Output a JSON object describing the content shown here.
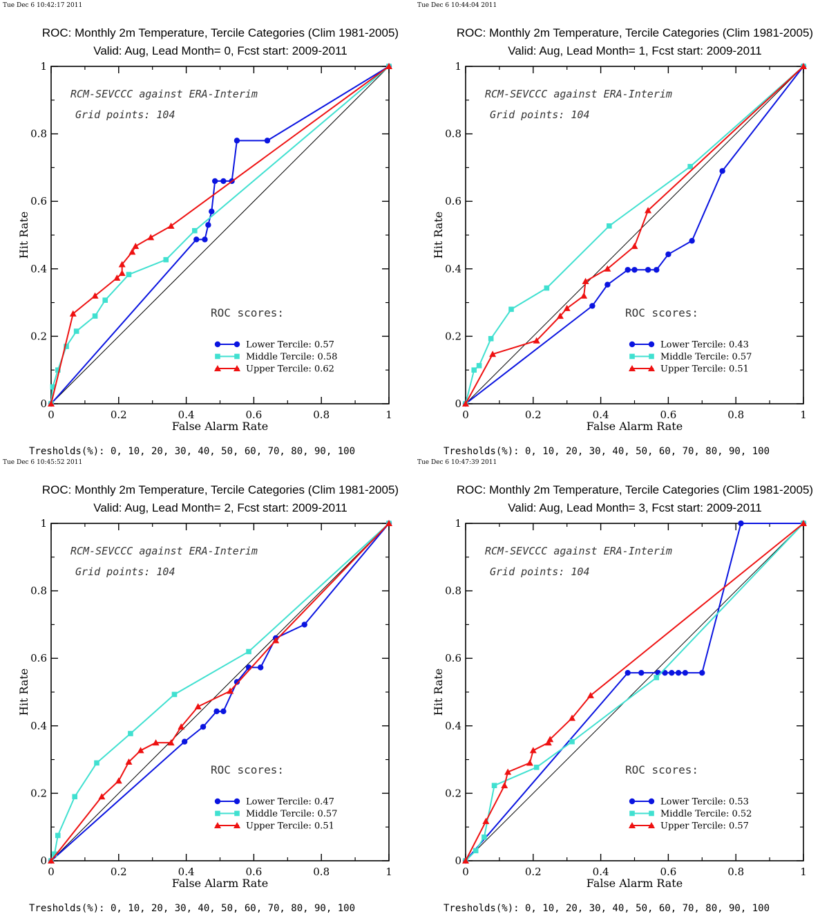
{
  "timestamps": [
    "Tue Dec  6 10:42:17 2011",
    "Tue Dec  6 10:44:04 2011",
    "Tue Dec  6 10:45:52 2011",
    "Tue Dec  6 10:47:39 2011"
  ],
  "colors": {
    "lower": "#0a14e0",
    "middle": "#40e0d0",
    "upper": "#ee1111",
    "diagonal": "#000000"
  },
  "chart_data": [
    {
      "type": "line",
      "title": "ROC: Monthly 2m Temperature, Tercile Categories (Clim 1981-2005)",
      "subtitle": "Valid: Aug, Lead Month= 0, Fcst start: 2009-2011",
      "xlabel": "False Alarm Rate",
      "ylabel": "Hit Rate",
      "xlim": [
        0,
        1
      ],
      "ylim": [
        0,
        1
      ],
      "xticks": [
        "0",
        "0.2",
        "0.4",
        "0.6",
        "0.8",
        "1"
      ],
      "yticks": [
        "0",
        "0.2",
        "0.4",
        "0.6",
        "0.8",
        "1"
      ],
      "annotation_1": "RCM-SEVCCC against ERA-Interim",
      "annotation_2": "Grid points:  104",
      "scores_heading": "ROC scores:",
      "thresholds": "Tresholds(%): 0, 10, 20, 30, 40, 50, 60, 70, 80, 90, 100",
      "series": [
        {
          "name": "Lower Tercile: 0.57",
          "marker": "circle",
          "x": [
            0,
            0.43,
            0.455,
            0.465,
            0.475,
            0.485,
            0.51,
            0.535,
            0.55,
            0.64,
            1
          ],
          "y": [
            0,
            0.487,
            0.487,
            0.53,
            0.57,
            0.66,
            0.66,
            0.66,
            0.78,
            0.78,
            1
          ]
        },
        {
          "name": "Middle Tercile: 0.58",
          "marker": "square",
          "x": [
            0,
            0.005,
            0.02,
            0.045,
            0.075,
            0.13,
            0.16,
            0.23,
            0.34,
            0.425,
            1
          ],
          "y": [
            0,
            0.05,
            0.1,
            0.17,
            0.215,
            0.26,
            0.307,
            0.383,
            0.427,
            0.513,
            1
          ]
        },
        {
          "name": "Upper Tercile: 0.62",
          "marker": "triangle",
          "x": [
            0,
            0.065,
            0.13,
            0.195,
            0.21,
            0.21,
            0.24,
            0.25,
            0.295,
            0.355,
            1
          ],
          "y": [
            0,
            0.267,
            0.32,
            0.373,
            0.387,
            0.413,
            0.45,
            0.467,
            0.493,
            0.527,
            1
          ]
        }
      ]
    },
    {
      "type": "line",
      "title": "ROC: Monthly 2m Temperature, Tercile Categories (Clim 1981-2005)",
      "subtitle": "Valid: Aug, Lead Month= 1, Fcst start: 2009-2011",
      "xlabel": "False Alarm Rate",
      "ylabel": "Hit Rate",
      "xlim": [
        0,
        1
      ],
      "ylim": [
        0,
        1
      ],
      "xticks": [
        "0",
        "0.2",
        "0.4",
        "0.6",
        "0.8",
        "1"
      ],
      "yticks": [
        "0",
        "0.2",
        "0.4",
        "0.6",
        "0.8",
        "1"
      ],
      "annotation_1": "RCM-SEVCCC against ERA-Interim",
      "annotation_2": "Grid points:  104",
      "scores_heading": "ROC scores:",
      "thresholds": "Tresholds(%): 0, 10, 20, 30, 40, 50, 60, 70, 80, 90, 100",
      "series": [
        {
          "name": "Lower Tercile: 0.43",
          "marker": "circle",
          "x": [
            0,
            0.375,
            0.42,
            0.48,
            0.5,
            0.54,
            0.565,
            0.6,
            0.67,
            0.76,
            1
          ],
          "y": [
            0,
            0.29,
            0.353,
            0.397,
            0.397,
            0.397,
            0.397,
            0.443,
            0.483,
            0.69,
            1
          ]
        },
        {
          "name": "Middle Tercile: 0.57",
          "marker": "square",
          "x": [
            0,
            0.025,
            0.04,
            0.075,
            0.135,
            0.24,
            0.425,
            0.665,
            1
          ],
          "y": [
            0,
            0.1,
            0.113,
            0.193,
            0.28,
            0.343,
            0.527,
            0.703,
            1
          ]
        },
        {
          "name": "Upper Tercile: 0.51",
          "marker": "triangle",
          "x": [
            0,
            0.08,
            0.21,
            0.28,
            0.3,
            0.35,
            0.355,
            0.42,
            0.5,
            0.54,
            1
          ],
          "y": [
            0,
            0.147,
            0.187,
            0.26,
            0.283,
            0.32,
            0.363,
            0.4,
            0.467,
            0.573,
            1
          ]
        }
      ]
    },
    {
      "type": "line",
      "title": "ROC: Monthly 2m Temperature, Tercile Categories (Clim 1981-2005)",
      "subtitle": "Valid: Aug, Lead Month= 2, Fcst start: 2009-2011",
      "xlabel": "False Alarm Rate",
      "ylabel": "Hit Rate",
      "xlim": [
        0,
        1
      ],
      "ylim": [
        0,
        1
      ],
      "xticks": [
        "0",
        "0.2",
        "0.4",
        "0.6",
        "0.8",
        "1"
      ],
      "yticks": [
        "0",
        "0.2",
        "0.4",
        "0.6",
        "0.8",
        "1"
      ],
      "annotation_1": "RCM-SEVCCC against ERA-Interim",
      "annotation_2": "Grid points:  104",
      "scores_heading": "ROC scores:",
      "thresholds": "Tresholds(%): 0, 10, 20, 30, 40, 50, 60, 70, 80, 90, 100",
      "series": [
        {
          "name": "Lower Tercile: 0.47",
          "marker": "circle",
          "x": [
            0,
            0.395,
            0.45,
            0.49,
            0.51,
            0.55,
            0.585,
            0.62,
            0.665,
            0.75,
            1
          ],
          "y": [
            0,
            0.353,
            0.397,
            0.443,
            0.443,
            0.53,
            0.573,
            0.573,
            0.66,
            0.7,
            1
          ]
        },
        {
          "name": "Middle Tercile: 0.57",
          "marker": "square",
          "x": [
            0,
            0.01,
            0.02,
            0.07,
            0.135,
            0.235,
            0.365,
            0.585,
            1
          ],
          "y": [
            0,
            0.02,
            0.075,
            0.19,
            0.29,
            0.377,
            0.493,
            0.62,
            1
          ]
        },
        {
          "name": "Upper Tercile: 0.51",
          "marker": "triangle",
          "x": [
            0,
            0.15,
            0.2,
            0.23,
            0.265,
            0.31,
            0.355,
            0.385,
            0.435,
            0.53,
            0.665,
            1
          ],
          "y": [
            0,
            0.19,
            0.237,
            0.293,
            0.327,
            0.35,
            0.35,
            0.397,
            0.457,
            0.503,
            0.653,
            1
          ]
        }
      ]
    },
    {
      "type": "line",
      "title": "ROC: Monthly 2m Temperature, Tercile Categories (Clim 1981-2005)",
      "subtitle": "Valid: Aug, Lead Month= 3, Fcst start: 2009-2011",
      "xlabel": "False Alarm Rate",
      "ylabel": "Hit Rate",
      "xlim": [
        0,
        1
      ],
      "ylim": [
        0,
        1
      ],
      "xticks": [
        "0",
        "0.2",
        "0.4",
        "0.6",
        "0.8",
        "1"
      ],
      "yticks": [
        "0",
        "0.2",
        "0.4",
        "0.6",
        "0.8",
        "1"
      ],
      "annotation_1": "RCM-SEVCCC against ERA-Interim",
      "annotation_2": "Grid points:  104",
      "scores_heading": "ROC scores:",
      "thresholds": "Tresholds(%): 0, 10, 20, 30, 40, 50, 60, 70, 80, 90, 100",
      "series": [
        {
          "name": "Lower Tercile: 0.53",
          "marker": "circle",
          "x": [
            0,
            0.48,
            0.52,
            0.57,
            0.59,
            0.61,
            0.63,
            0.65,
            0.7,
            0.815,
            1
          ],
          "y": [
            0,
            0.557,
            0.557,
            0.557,
            0.557,
            0.557,
            0.557,
            0.557,
            0.557,
            1,
            1
          ]
        },
        {
          "name": "Middle Tercile: 0.52",
          "marker": "square",
          "x": [
            0,
            0.03,
            0.055,
            0.085,
            0.21,
            0.315,
            0.565,
            1
          ],
          "y": [
            0,
            0.03,
            0.07,
            0.223,
            0.277,
            0.353,
            0.543,
            1
          ]
        },
        {
          "name": "Upper Tercile: 0.57",
          "marker": "triangle",
          "x": [
            0,
            0.06,
            0.115,
            0.125,
            0.19,
            0.2,
            0.245,
            0.25,
            0.315,
            0.37,
            1
          ],
          "y": [
            0,
            0.117,
            0.223,
            0.263,
            0.29,
            0.327,
            0.35,
            0.36,
            0.423,
            0.49,
            1
          ]
        }
      ]
    }
  ]
}
